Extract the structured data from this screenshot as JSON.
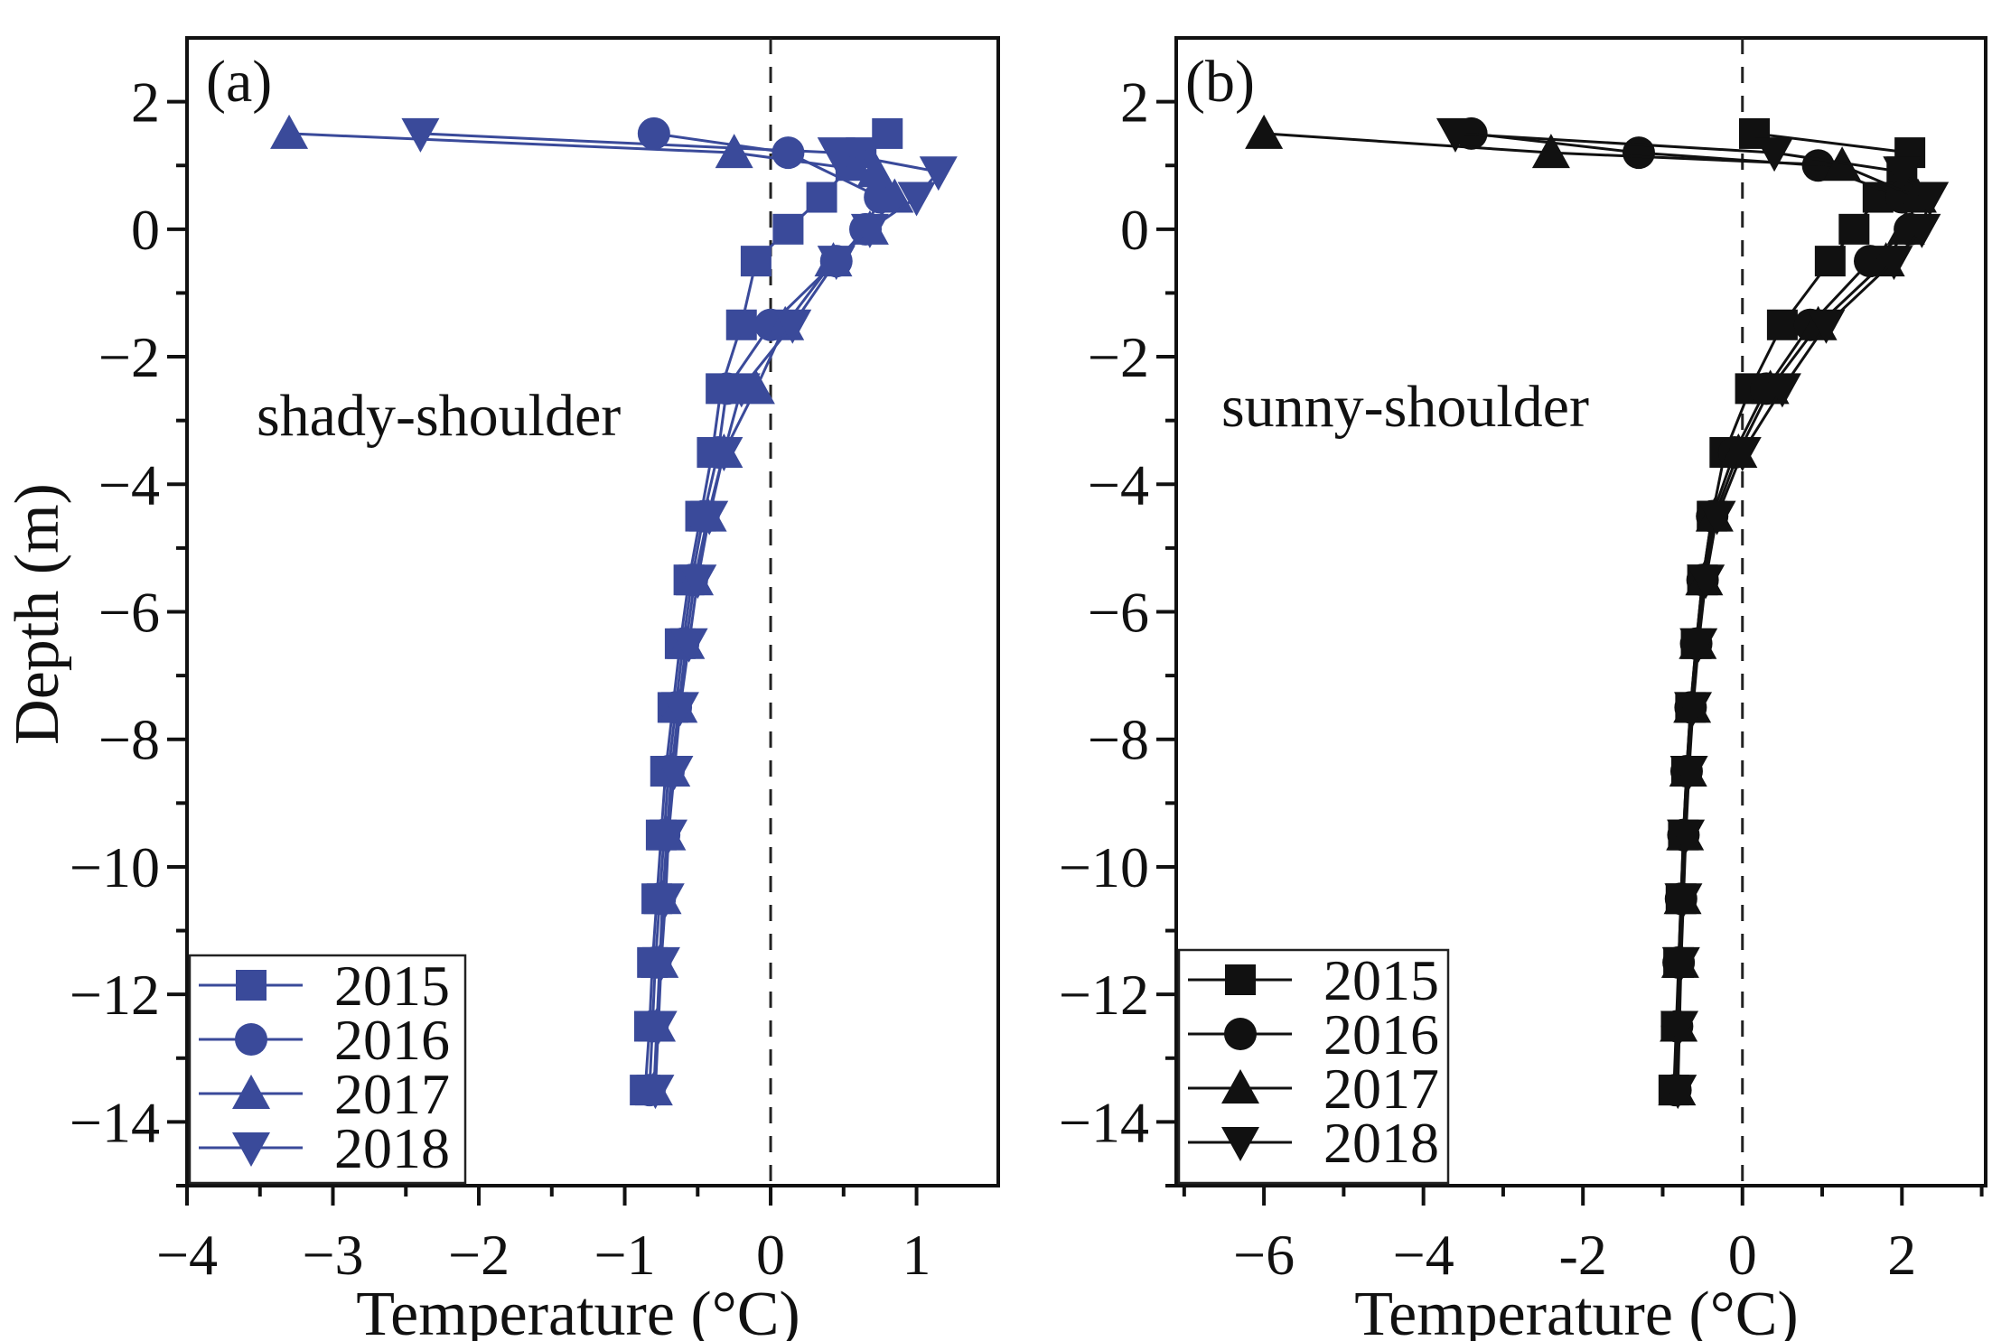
{
  "chart_data": [
    {
      "type": "line",
      "panel_label": "(a)",
      "annotation": "shady-shoulder",
      "xlabel": "Temperature (°C)",
      "ylabel": "Depth (m)",
      "xlim": [
        -4,
        1.56
      ],
      "ylim": [
        -15,
        3
      ],
      "xticks": [
        -4,
        -3,
        -2,
        -1,
        0,
        1
      ],
      "xtick_labels": [
        "−4",
        "−3",
        "−2",
        "−1",
        "0",
        "1"
      ],
      "yticks": [
        2,
        0,
        -2,
        -4,
        -6,
        -8,
        -10,
        -12,
        -14
      ],
      "ytick_labels": [
        "2",
        "0",
        "−2",
        "−4",
        "−6",
        "−8",
        "−10",
        "−12",
        "−14"
      ],
      "reference_line_x": 0,
      "color": "#3a4a9a",
      "legend_position": "bottom-left",
      "grid": false,
      "series": [
        {
          "name": "2015",
          "marker": "square",
          "depth": [
            1.5,
            1.2,
            1.0,
            0.5,
            0,
            -0.5,
            -1.5,
            -2.5,
            -3.5,
            -4.5,
            -5.5,
            -6.5,
            -7.5,
            -8.5,
            -9.5,
            -10.5,
            -11.5,
            -12.5,
            -13.5
          ],
          "temperature": [
            0.8,
            0.62,
            0.55,
            0.35,
            0.12,
            -0.1,
            -0.2,
            -0.34,
            -0.4,
            -0.48,
            -0.56,
            -0.62,
            -0.67,
            -0.72,
            -0.75,
            -0.78,
            -0.81,
            -0.83,
            -0.86
          ]
        },
        {
          "name": "2016",
          "marker": "circle",
          "depth": [
            1.5,
            1.2,
            0.5,
            0,
            -0.5,
            -1.5,
            -2.5,
            -3.5,
            -4.5,
            -5.5,
            -6.5,
            -7.5,
            -8.5,
            -9.5,
            -10.5,
            -11.5,
            -12.5,
            -13.5
          ],
          "temperature": [
            -0.8,
            0.12,
            0.75,
            0.65,
            0.45,
            0.0,
            -0.3,
            -0.36,
            -0.46,
            -0.54,
            -0.6,
            -0.65,
            -0.7,
            -0.73,
            -0.76,
            -0.79,
            -0.81,
            -0.83
          ]
        },
        {
          "name": "2017",
          "marker": "triangle-up",
          "depth": [
            1.5,
            1.2,
            0.9,
            0.5,
            0,
            -0.5,
            -1.5,
            -2.5,
            -3.5,
            -4.5,
            -5.5,
            -6.5,
            -7.5,
            -8.5,
            -9.5,
            -10.5,
            -11.5,
            -12.5,
            -13.5
          ],
          "temperature": [
            -3.3,
            -0.25,
            0.72,
            0.85,
            0.68,
            0.43,
            0.1,
            -0.1,
            -0.32,
            -0.43,
            -0.52,
            -0.58,
            -0.63,
            -0.68,
            -0.71,
            -0.74,
            -0.76,
            -0.78,
            -0.8
          ]
        },
        {
          "name": "2018",
          "marker": "triangle-down",
          "depth": [
            1.5,
            1.2,
            0.9,
            0.5,
            0,
            -0.5,
            -1.5,
            -2.5,
            -3.5,
            -4.5,
            -5.5,
            -6.5,
            -7.5,
            -8.5,
            -9.5,
            -10.5,
            -11.5,
            -12.5,
            -13.5
          ],
          "temperature": [
            -2.4,
            0.45,
            1.15,
            1.0,
            0.68,
            0.45,
            0.15,
            -0.2,
            -0.32,
            -0.42,
            -0.5,
            -0.56,
            -0.62,
            -0.66,
            -0.7,
            -0.72,
            -0.75,
            -0.77,
            -0.79
          ]
        }
      ]
    },
    {
      "type": "line",
      "panel_label": "(b)",
      "annotation": "sunny-shoulder",
      "xlabel": "Temperature (°C)",
      "ylabel": "",
      "xlim": [
        -7.1,
        3.05
      ],
      "ylim": [
        -15,
        3
      ],
      "xticks": [
        -6,
        -4,
        -2,
        0,
        2
      ],
      "xtick_labels": [
        "−6",
        "−4",
        "-2",
        "0",
        "2"
      ],
      "minor_xticks": [
        -7,
        -5,
        -3,
        -1,
        1,
        3
      ],
      "yticks": [
        2,
        0,
        -2,
        -4,
        -6,
        -8,
        -10,
        -12,
        -14
      ],
      "ytick_labels": [
        "2",
        "0",
        "−2",
        "−4",
        "−6",
        "−8",
        "−10",
        "−12",
        "−14"
      ],
      "reference_line_x": 0,
      "color": "#111111",
      "legend_position": "bottom-left",
      "grid": false,
      "series": [
        {
          "name": "2015",
          "marker": "square",
          "depth": [
            1.5,
            1.2,
            0.9,
            0.5,
            0,
            -0.5,
            -1.5,
            -2.5,
            -3.5,
            -4.5,
            -5.5,
            -6.5,
            -7.5,
            -8.5,
            -9.5,
            -10.5,
            -11.5,
            -12.5,
            -13.5
          ],
          "temperature": [
            0.15,
            2.1,
            2.0,
            1.7,
            1.4,
            1.1,
            0.5,
            0.1,
            -0.22,
            -0.38,
            -0.5,
            -0.58,
            -0.65,
            -0.7,
            -0.74,
            -0.77,
            -0.8,
            -0.83,
            -0.86
          ]
        },
        {
          "name": "2016",
          "marker": "circle",
          "depth": [
            1.5,
            1.2,
            1.0,
            0.5,
            0,
            -0.5,
            -1.5,
            -2.5,
            -3.5,
            -4.5,
            -5.5,
            -6.5,
            -7.5,
            -8.5,
            -9.5,
            -10.5,
            -11.5,
            -12.5,
            -13.5
          ],
          "temperature": [
            -3.4,
            -1.3,
            0.95,
            2.0,
            2.1,
            1.6,
            0.85,
            0.3,
            -0.1,
            -0.38,
            -0.5,
            -0.58,
            -0.65,
            -0.7,
            -0.74,
            -0.77,
            -0.8,
            -0.82,
            -0.84
          ]
        },
        {
          "name": "2017",
          "marker": "triangle-up",
          "depth": [
            1.5,
            1.2,
            1.0,
            0.5,
            0,
            -0.5,
            -1.5,
            -2.5,
            -3.5,
            -4.5,
            -5.5,
            -6.5,
            -7.5,
            -8.5,
            -9.5,
            -10.5,
            -11.5,
            -12.5,
            -13.5
          ],
          "temperature": [
            -6.0,
            -2.4,
            1.25,
            2.2,
            2.05,
            1.8,
            0.95,
            0.35,
            -0.05,
            -0.35,
            -0.48,
            -0.56,
            -0.63,
            -0.68,
            -0.72,
            -0.75,
            -0.78,
            -0.8,
            -0.82
          ]
        },
        {
          "name": "2018",
          "marker": "triangle-down",
          "depth": [
            1.5,
            1.2,
            0.9,
            0.5,
            0,
            -0.5,
            -1.5,
            -2.5,
            -3.5,
            -4.5,
            -5.5,
            -6.5,
            -7.5,
            -8.5,
            -9.5,
            -10.5,
            -11.5,
            -12.5,
            -13.5
          ],
          "temperature": [
            -3.6,
            0.4,
            2.0,
            2.35,
            2.25,
            1.9,
            1.05,
            0.5,
            0.0,
            -0.32,
            -0.46,
            -0.55,
            -0.62,
            -0.67,
            -0.71,
            -0.74,
            -0.77,
            -0.79,
            -0.81
          ]
        }
      ]
    }
  ]
}
